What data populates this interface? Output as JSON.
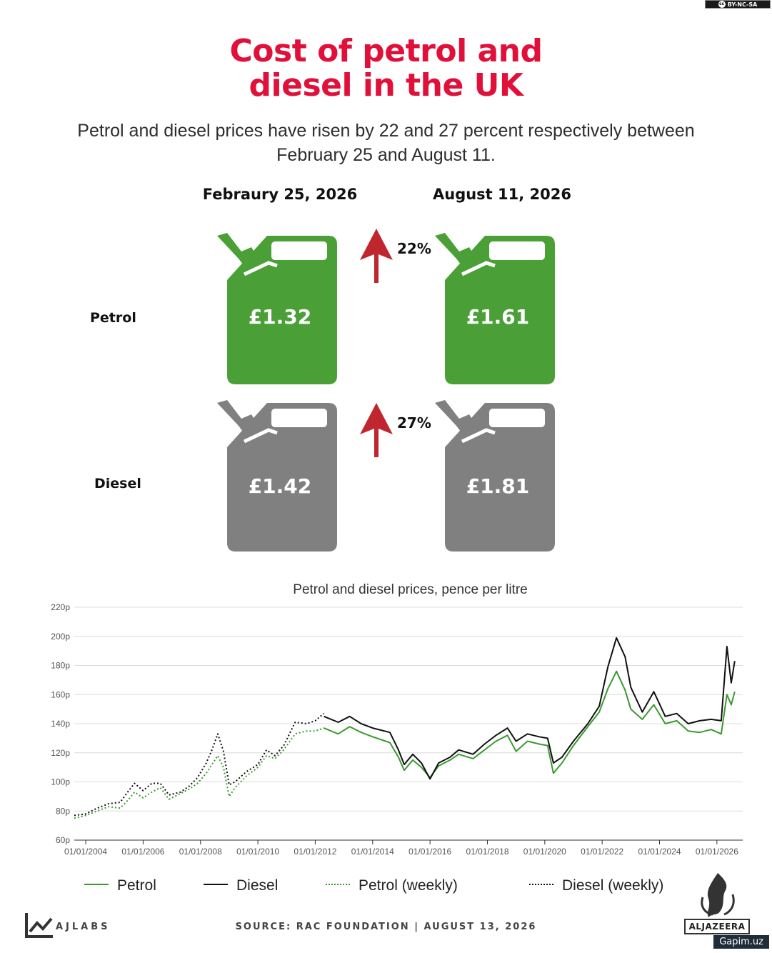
{
  "license": "BY-NC-SA",
  "title_line1": "Cost of petrol and",
  "title_line2": "diesel in the UK",
  "subtitle_line1": "Petrol and diesel prices have risen by 22 and 27 percent respectively between",
  "subtitle_line2": "February 25 and August 11.",
  "dates": {
    "before": "Febraury 25, 2026",
    "after": "August 11, 2026"
  },
  "rows": {
    "petrol": {
      "label": "Petrol",
      "before": "£1.32",
      "after": "£1.61",
      "change": "22%",
      "color": "#4aa036"
    },
    "diesel": {
      "label": "Diesel",
      "before": "£1.42",
      "after": "£1.81",
      "change": "27%",
      "color": "#808080"
    }
  },
  "arrow_color": "#c0262d",
  "chart_data": {
    "type": "line",
    "title": "Petrol and diesel prices, pence per litre",
    "ylim": [
      60,
      220
    ],
    "yticks": [
      "60p",
      "80p",
      "100p",
      "120p",
      "140p",
      "160p",
      "180p",
      "200p",
      "220p"
    ],
    "xlim": [
      2003.6,
      2026.9
    ],
    "xticks": [
      "01/01/2004",
      "01/01/2006",
      "01/01/2008",
      "01/01/2010",
      "01/01/2012",
      "01/01/2014",
      "01/01/2016",
      "01/01/2018",
      "01/01/2020",
      "01/01/2022",
      "01/01/2024",
      "01/01/2026"
    ],
    "grid": true,
    "legend": [
      "Petrol",
      "Diesel",
      "Petrol (weekly)",
      "Diesel (weekly)"
    ],
    "series": [
      {
        "name": "Petrol (weekly)",
        "color": "#3a9a2e",
        "style": "dotted",
        "x": [
          2003.6,
          2004.0,
          2004.4,
          2004.8,
          2005.2,
          2005.5,
          2005.7,
          2006.0,
          2006.3,
          2006.6,
          2006.9,
          2007.3,
          2007.6,
          2007.9,
          2008.2,
          2008.4,
          2008.6,
          2008.8,
          2009.0,
          2009.2,
          2009.6,
          2010.0,
          2010.3,
          2010.6,
          2010.9,
          2011.3,
          2011.7,
          2012.0,
          2012.3
        ],
        "y": [
          75,
          77,
          80,
          83,
          82,
          88,
          93,
          89,
          93,
          96,
          88,
          92,
          95,
          99,
          106,
          112,
          118,
          110,
          90,
          96,
          104,
          110,
          118,
          116,
          122,
          133,
          135,
          135,
          137
        ]
      },
      {
        "name": "Diesel (weekly)",
        "color": "#111111",
        "style": "dotted",
        "x": [
          2003.6,
          2004.0,
          2004.4,
          2004.8,
          2005.2,
          2005.5,
          2005.7,
          2006.0,
          2006.3,
          2006.6,
          2006.9,
          2007.3,
          2007.6,
          2007.9,
          2008.2,
          2008.4,
          2008.6,
          2008.8,
          2009.0,
          2009.2,
          2009.6,
          2010.0,
          2010.3,
          2010.6,
          2010.9,
          2011.3,
          2011.7,
          2012.0,
          2012.3
        ],
        "y": [
          77,
          78,
          82,
          85,
          86,
          94,
          99,
          94,
          99,
          99,
          91,
          93,
          97,
          103,
          113,
          122,
          133,
          121,
          98,
          100,
          107,
          112,
          122,
          118,
          125,
          141,
          140,
          142,
          147
        ]
      },
      {
        "name": "Petrol",
        "color": "#3a9a2e",
        "style": "solid",
        "x": [
          2012.3,
          2012.8,
          2013.2,
          2013.6,
          2014.0,
          2014.6,
          2014.9,
          2015.1,
          2015.4,
          2015.7,
          2016.0,
          2016.3,
          2016.7,
          2017.0,
          2017.5,
          2017.9,
          2018.3,
          2018.7,
          2019.0,
          2019.4,
          2019.8,
          2020.1,
          2020.3,
          2020.6,
          2021.0,
          2021.5,
          2021.9,
          2022.2,
          2022.5,
          2022.8,
          2023.0,
          2023.4,
          2023.8,
          2024.2,
          2024.6,
          2025.0,
          2025.4,
          2025.8,
          2026.15,
          2026.35,
          2026.5,
          2026.62
        ],
        "y": [
          137,
          133,
          138,
          134,
          131,
          127,
          117,
          108,
          115,
          110,
          103,
          111,
          115,
          119,
          116,
          122,
          128,
          132,
          121,
          128,
          126,
          125,
          106,
          113,
          125,
          138,
          148,
          164,
          176,
          163,
          150,
          143,
          153,
          140,
          142,
          135,
          134,
          136,
          133,
          160,
          153,
          162
        ]
      },
      {
        "name": "Diesel",
        "color": "#111111",
        "style": "solid",
        "x": [
          2012.3,
          2012.8,
          2013.2,
          2013.6,
          2014.0,
          2014.6,
          2014.9,
          2015.1,
          2015.4,
          2015.7,
          2016.0,
          2016.3,
          2016.7,
          2017.0,
          2017.5,
          2017.9,
          2018.3,
          2018.7,
          2019.0,
          2019.4,
          2019.8,
          2020.1,
          2020.3,
          2020.6,
          2021.0,
          2021.5,
          2021.9,
          2022.2,
          2022.5,
          2022.8,
          2023.0,
          2023.4,
          2023.8,
          2024.2,
          2024.6,
          2025.0,
          2025.4,
          2025.8,
          2026.15,
          2026.35,
          2026.5,
          2026.62
        ],
        "y": [
          145,
          141,
          145,
          140,
          137,
          134,
          122,
          112,
          119,
          113,
          102,
          113,
          117,
          122,
          119,
          126,
          132,
          137,
          128,
          133,
          131,
          130,
          113,
          117,
          128,
          140,
          152,
          179,
          199,
          186,
          165,
          148,
          162,
          145,
          147,
          140,
          142,
          143,
          142,
          193,
          168,
          183
        ]
      }
    ]
  },
  "footer": {
    "brand": "AJLABS",
    "source": "SOURCE:  RAC FOUNDATION  |  AUGUST 13, 2026",
    "publisher": "ALJAZEERA",
    "watermark": "Gapim.uz"
  }
}
